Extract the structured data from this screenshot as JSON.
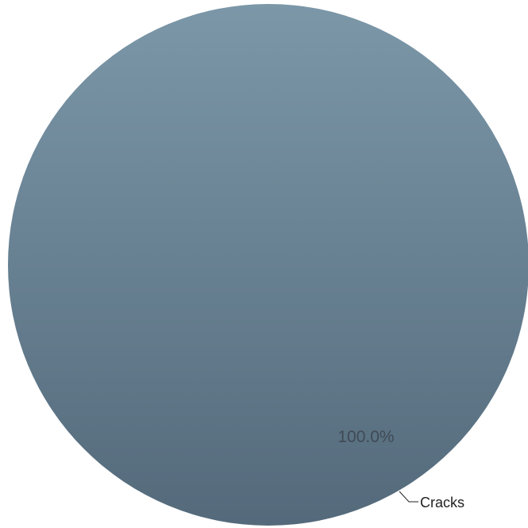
{
  "chart_data": {
    "type": "pie",
    "categories": [
      "Cracks"
    ],
    "values": [
      100.0
    ],
    "data_labels": [
      "100.0%"
    ],
    "title": "",
    "legend": "none",
    "colors": {
      "slice_top": "#7b97a8",
      "slice_bottom": "#546a7b",
      "leader_line": "#222222"
    }
  }
}
